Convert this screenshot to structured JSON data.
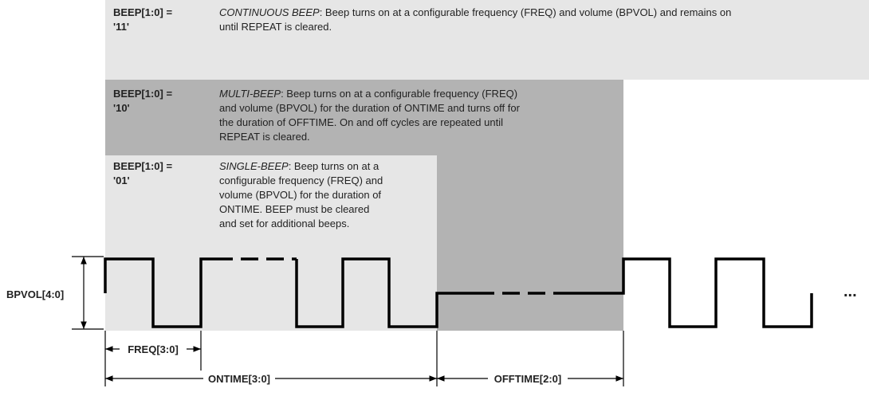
{
  "modes": [
    {
      "label_lines": [
        "BEEP[1:0] =",
        "'11'"
      ],
      "name": "CONTINUOUS BEEP",
      "lines": [
        ": Beep turns on at a configurable frequency (FREQ) and volume (BPVOL) and remains on",
        "until REPEAT is cleared."
      ]
    },
    {
      "label_lines": [
        "BEEP[1:0] =",
        "'10'"
      ],
      "name": "MULTI-BEEP",
      "lines": [
        ": Beep turns on at a configurable frequency (FREQ)",
        "and volume (BPVOL) for the duration of ONTIME and turns off for",
        "the duration of OFFTIME. On and off cycles are repeated until",
        "REPEAT is cleared."
      ]
    },
    {
      "label_lines": [
        "BEEP[1:0] =",
        "'01'"
      ],
      "name": "SINGLE-BEEP",
      "lines": [
        ": Beep turns on at a",
        "configurable frequency (FREQ) and",
        "volume (BPVOL) for the duration of",
        "ONTIME. BEEP must be cleared",
        "and set for additional beeps."
      ]
    }
  ],
  "signals": {
    "amplitude": "BPVOL[4:0]",
    "freq": "FREQ[3:0]",
    "ontime": "ONTIME[3:0]",
    "offtime": "OFFTIME[2:0]",
    "continuation": "..."
  }
}
